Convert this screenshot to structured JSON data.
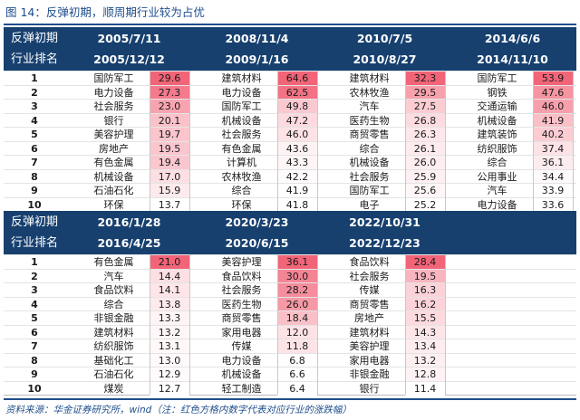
{
  "figure": {
    "title": "图 14：反弹初期，顺周期行业较为占优",
    "footnote": "资料来源：华金证券研究所，wind（注：红色方格内数字代表对应行业的涨跌幅）"
  },
  "colors": {
    "header_bg": "#17406f",
    "title_blue": "#1f4e8c",
    "heat_max": "#f26478",
    "heat_min": "#ffffff"
  },
  "sections": [
    {
      "label_top": "反弹初期",
      "label_bottom": "行业排名",
      "periods": [
        {
          "start": "2005/7/11",
          "end": "2005/12/12",
          "rows": [
            {
              "rank": "1",
              "industry": "国防军工",
              "value": "29.6"
            },
            {
              "rank": "2",
              "industry": "电力设备",
              "value": "27.3"
            },
            {
              "rank": "3",
              "industry": "社会服务",
              "value": "23.0"
            },
            {
              "rank": "4",
              "industry": "银行",
              "value": "20.1"
            },
            {
              "rank": "5",
              "industry": "美容护理",
              "value": "19.7"
            },
            {
              "rank": "6",
              "industry": "房地产",
              "value": "19.5"
            },
            {
              "rank": "7",
              "industry": "有色金属",
              "value": "19.4"
            },
            {
              "rank": "8",
              "industry": "机械设备",
              "value": "17.0"
            },
            {
              "rank": "9",
              "industry": "石油石化",
              "value": "15.9"
            },
            {
              "rank": "10",
              "industry": "环保",
              "value": "13.7"
            }
          ]
        },
        {
          "start": "2008/11/4",
          "end": "2009/1/16",
          "rows": [
            {
              "rank": "1",
              "industry": "建筑材料",
              "value": "64.6"
            },
            {
              "rank": "2",
              "industry": "电力设备",
              "value": "62.5"
            },
            {
              "rank": "3",
              "industry": "国防军工",
              "value": "49.8"
            },
            {
              "rank": "4",
              "industry": "机械设备",
              "value": "47.2"
            },
            {
              "rank": "5",
              "industry": "社会服务",
              "value": "46.0"
            },
            {
              "rank": "6",
              "industry": "有色金属",
              "value": "43.6"
            },
            {
              "rank": "7",
              "industry": "计算机",
              "value": "43.3"
            },
            {
              "rank": "8",
              "industry": "农林牧渔",
              "value": "42.2"
            },
            {
              "rank": "9",
              "industry": "综合",
              "value": "41.9"
            },
            {
              "rank": "10",
              "industry": "环保",
              "value": "41.8"
            }
          ]
        },
        {
          "start": "2010/7/5",
          "end": "2010/8/27",
          "rows": [
            {
              "rank": "1",
              "industry": "建筑材料",
              "value": "32.3"
            },
            {
              "rank": "2",
              "industry": "农林牧渔",
              "value": "29.5"
            },
            {
              "rank": "3",
              "industry": "汽车",
              "value": "27.5"
            },
            {
              "rank": "4",
              "industry": "医药生物",
              "value": "26.8"
            },
            {
              "rank": "5",
              "industry": "商贸零售",
              "value": "26.3"
            },
            {
              "rank": "6",
              "industry": "综合",
              "value": "26.1"
            },
            {
              "rank": "7",
              "industry": "机械设备",
              "value": "26.0"
            },
            {
              "rank": "8",
              "industry": "社会服务",
              "value": "25.9"
            },
            {
              "rank": "9",
              "industry": "国防军工",
              "value": "25.6"
            },
            {
              "rank": "10",
              "industry": "电子",
              "value": "25.2"
            }
          ]
        },
        {
          "start": "2014/6/6",
          "end": "2014/11/10",
          "rows": [
            {
              "rank": "1",
              "industry": "国防军工",
              "value": "53.9"
            },
            {
              "rank": "2",
              "industry": "钢铁",
              "value": "47.6"
            },
            {
              "rank": "3",
              "industry": "交通运输",
              "value": "46.0"
            },
            {
              "rank": "4",
              "industry": "机械设备",
              "value": "41.9"
            },
            {
              "rank": "5",
              "industry": "建筑装饰",
              "value": "40.2"
            },
            {
              "rank": "6",
              "industry": "纺织服饰",
              "value": "37.4"
            },
            {
              "rank": "7",
              "industry": "综合",
              "value": "36.1"
            },
            {
              "rank": "8",
              "industry": "公用事业",
              "value": "34.4"
            },
            {
              "rank": "9",
              "industry": "汽车",
              "value": "33.9"
            },
            {
              "rank": "10",
              "industry": "电力设备",
              "value": "33.6"
            }
          ]
        }
      ]
    },
    {
      "label_top": "反弹初期",
      "label_bottom": "行业排名",
      "periods": [
        {
          "start": "2016/1/28",
          "end": "2016/4/25",
          "rows": [
            {
              "rank": "1",
              "industry": "有色金属",
              "value": "21.0"
            },
            {
              "rank": "2",
              "industry": "汽车",
              "value": "14.4"
            },
            {
              "rank": "3",
              "industry": "食品饮料",
              "value": "14.1"
            },
            {
              "rank": "4",
              "industry": "综合",
              "value": "13.8"
            },
            {
              "rank": "5",
              "industry": "非银金融",
              "value": "13.3"
            },
            {
              "rank": "6",
              "industry": "建筑材料",
              "value": "13.2"
            },
            {
              "rank": "7",
              "industry": "纺织服饰",
              "value": "13.1"
            },
            {
              "rank": "8",
              "industry": "基础化工",
              "value": "13.0"
            },
            {
              "rank": "9",
              "industry": "石油石化",
              "value": "12.9"
            },
            {
              "rank": "10",
              "industry": "煤炭",
              "value": "12.7"
            }
          ]
        },
        {
          "start": "2020/3/23",
          "end": "2020/6/15",
          "rows": [
            {
              "rank": "1",
              "industry": "美容护理",
              "value": "36.1"
            },
            {
              "rank": "2",
              "industry": "食品饮料",
              "value": "30.0"
            },
            {
              "rank": "3",
              "industry": "社会服务",
              "value": "28.2"
            },
            {
              "rank": "4",
              "industry": "医药生物",
              "value": "26.0"
            },
            {
              "rank": "5",
              "industry": "商贸零售",
              "value": "18.4"
            },
            {
              "rank": "6",
              "industry": "家用电器",
              "value": "12.0"
            },
            {
              "rank": "7",
              "industry": "传媒",
              "value": "11.8"
            },
            {
              "rank": "8",
              "industry": "电力设备",
              "value": "6.8"
            },
            {
              "rank": "9",
              "industry": "机械设备",
              "value": "6.6"
            },
            {
              "rank": "10",
              "industry": "轻工制造",
              "value": "6.4"
            }
          ]
        },
        {
          "start": "2022/10/31",
          "end": "2022/12/23",
          "rows": [
            {
              "rank": "1",
              "industry": "食品饮料",
              "value": "28.4"
            },
            {
              "rank": "2",
              "industry": "社会服务",
              "value": "19.5"
            },
            {
              "rank": "3",
              "industry": "传媒",
              "value": "16.3"
            },
            {
              "rank": "4",
              "industry": "商贸零售",
              "value": "16.2"
            },
            {
              "rank": "5",
              "industry": "房地产",
              "value": "15.5"
            },
            {
              "rank": "6",
              "industry": "建筑材料",
              "value": "14.3"
            },
            {
              "rank": "7",
              "industry": "美容护理",
              "value": "13.4"
            },
            {
              "rank": "8",
              "industry": "家用电器",
              "value": "13.2"
            },
            {
              "rank": "9",
              "industry": "非银金融",
              "value": "12.8"
            },
            {
              "rank": "10",
              "industry": "银行",
              "value": "11.4"
            }
          ]
        }
      ]
    }
  ]
}
